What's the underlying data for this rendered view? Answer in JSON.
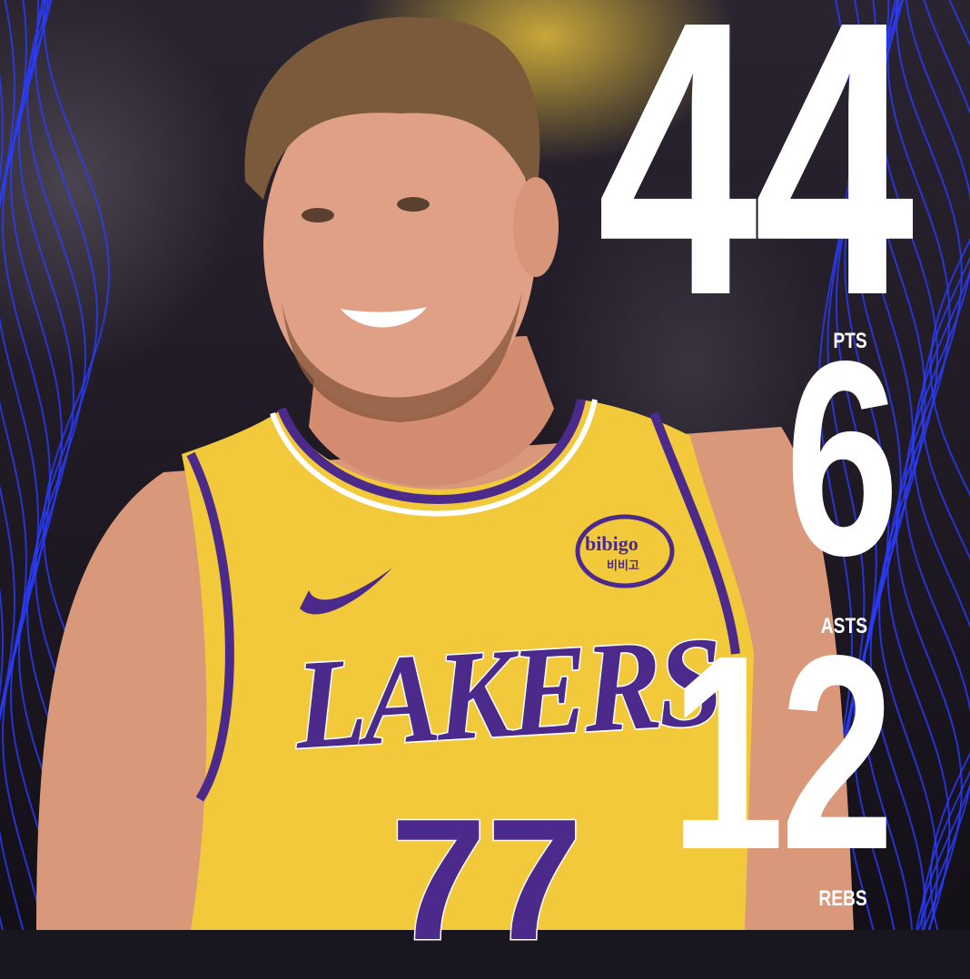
{
  "stats": [
    {
      "value": "44",
      "label": "PTS"
    },
    {
      "value": "6",
      "label": "ASTS"
    },
    {
      "value": "12",
      "label": "REBS"
    }
  ],
  "jersey": {
    "team": "LAKERS",
    "number": "77",
    "sponsor": "bibigo",
    "sponsor_korean": "비비고"
  },
  "colors": {
    "lakers_gold": "#f5cf3a",
    "lakers_purple": "#4b2a8c",
    "wave_blue": "#2a3cff",
    "text": "#ffffff"
  }
}
